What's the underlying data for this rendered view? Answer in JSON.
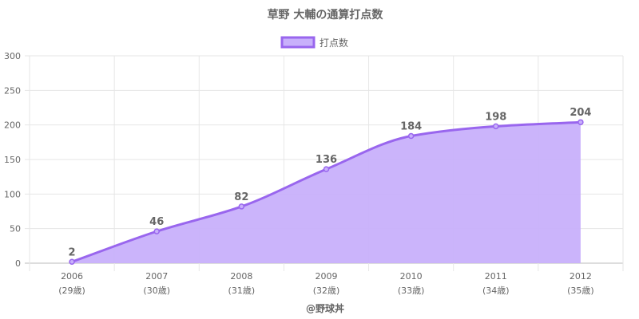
{
  "chart_data": {
    "type": "area",
    "title": "草野 大輔の通算打点数",
    "legend": {
      "label": "打点数",
      "position": "top"
    },
    "categories": [
      "2006",
      "2007",
      "2008",
      "2009",
      "2010",
      "2011",
      "2012"
    ],
    "age_labels": [
      "(29歳)",
      "(30歳)",
      "(31歳)",
      "(32歳)",
      "(33歳)",
      "(34歳)",
      "(35歳)"
    ],
    "series": [
      {
        "name": "打点数",
        "values": [
          2,
          46,
          82,
          136,
          184,
          198,
          204
        ]
      }
    ],
    "ylim": [
      0,
      300
    ],
    "yticks": [
      0,
      50,
      100,
      150,
      200,
      250,
      300
    ],
    "grid": true,
    "colors": {
      "line": "#9966ee",
      "fill": "#c8b0fb",
      "grid": "#e6e6e6"
    },
    "credit": "@野球丼"
  }
}
